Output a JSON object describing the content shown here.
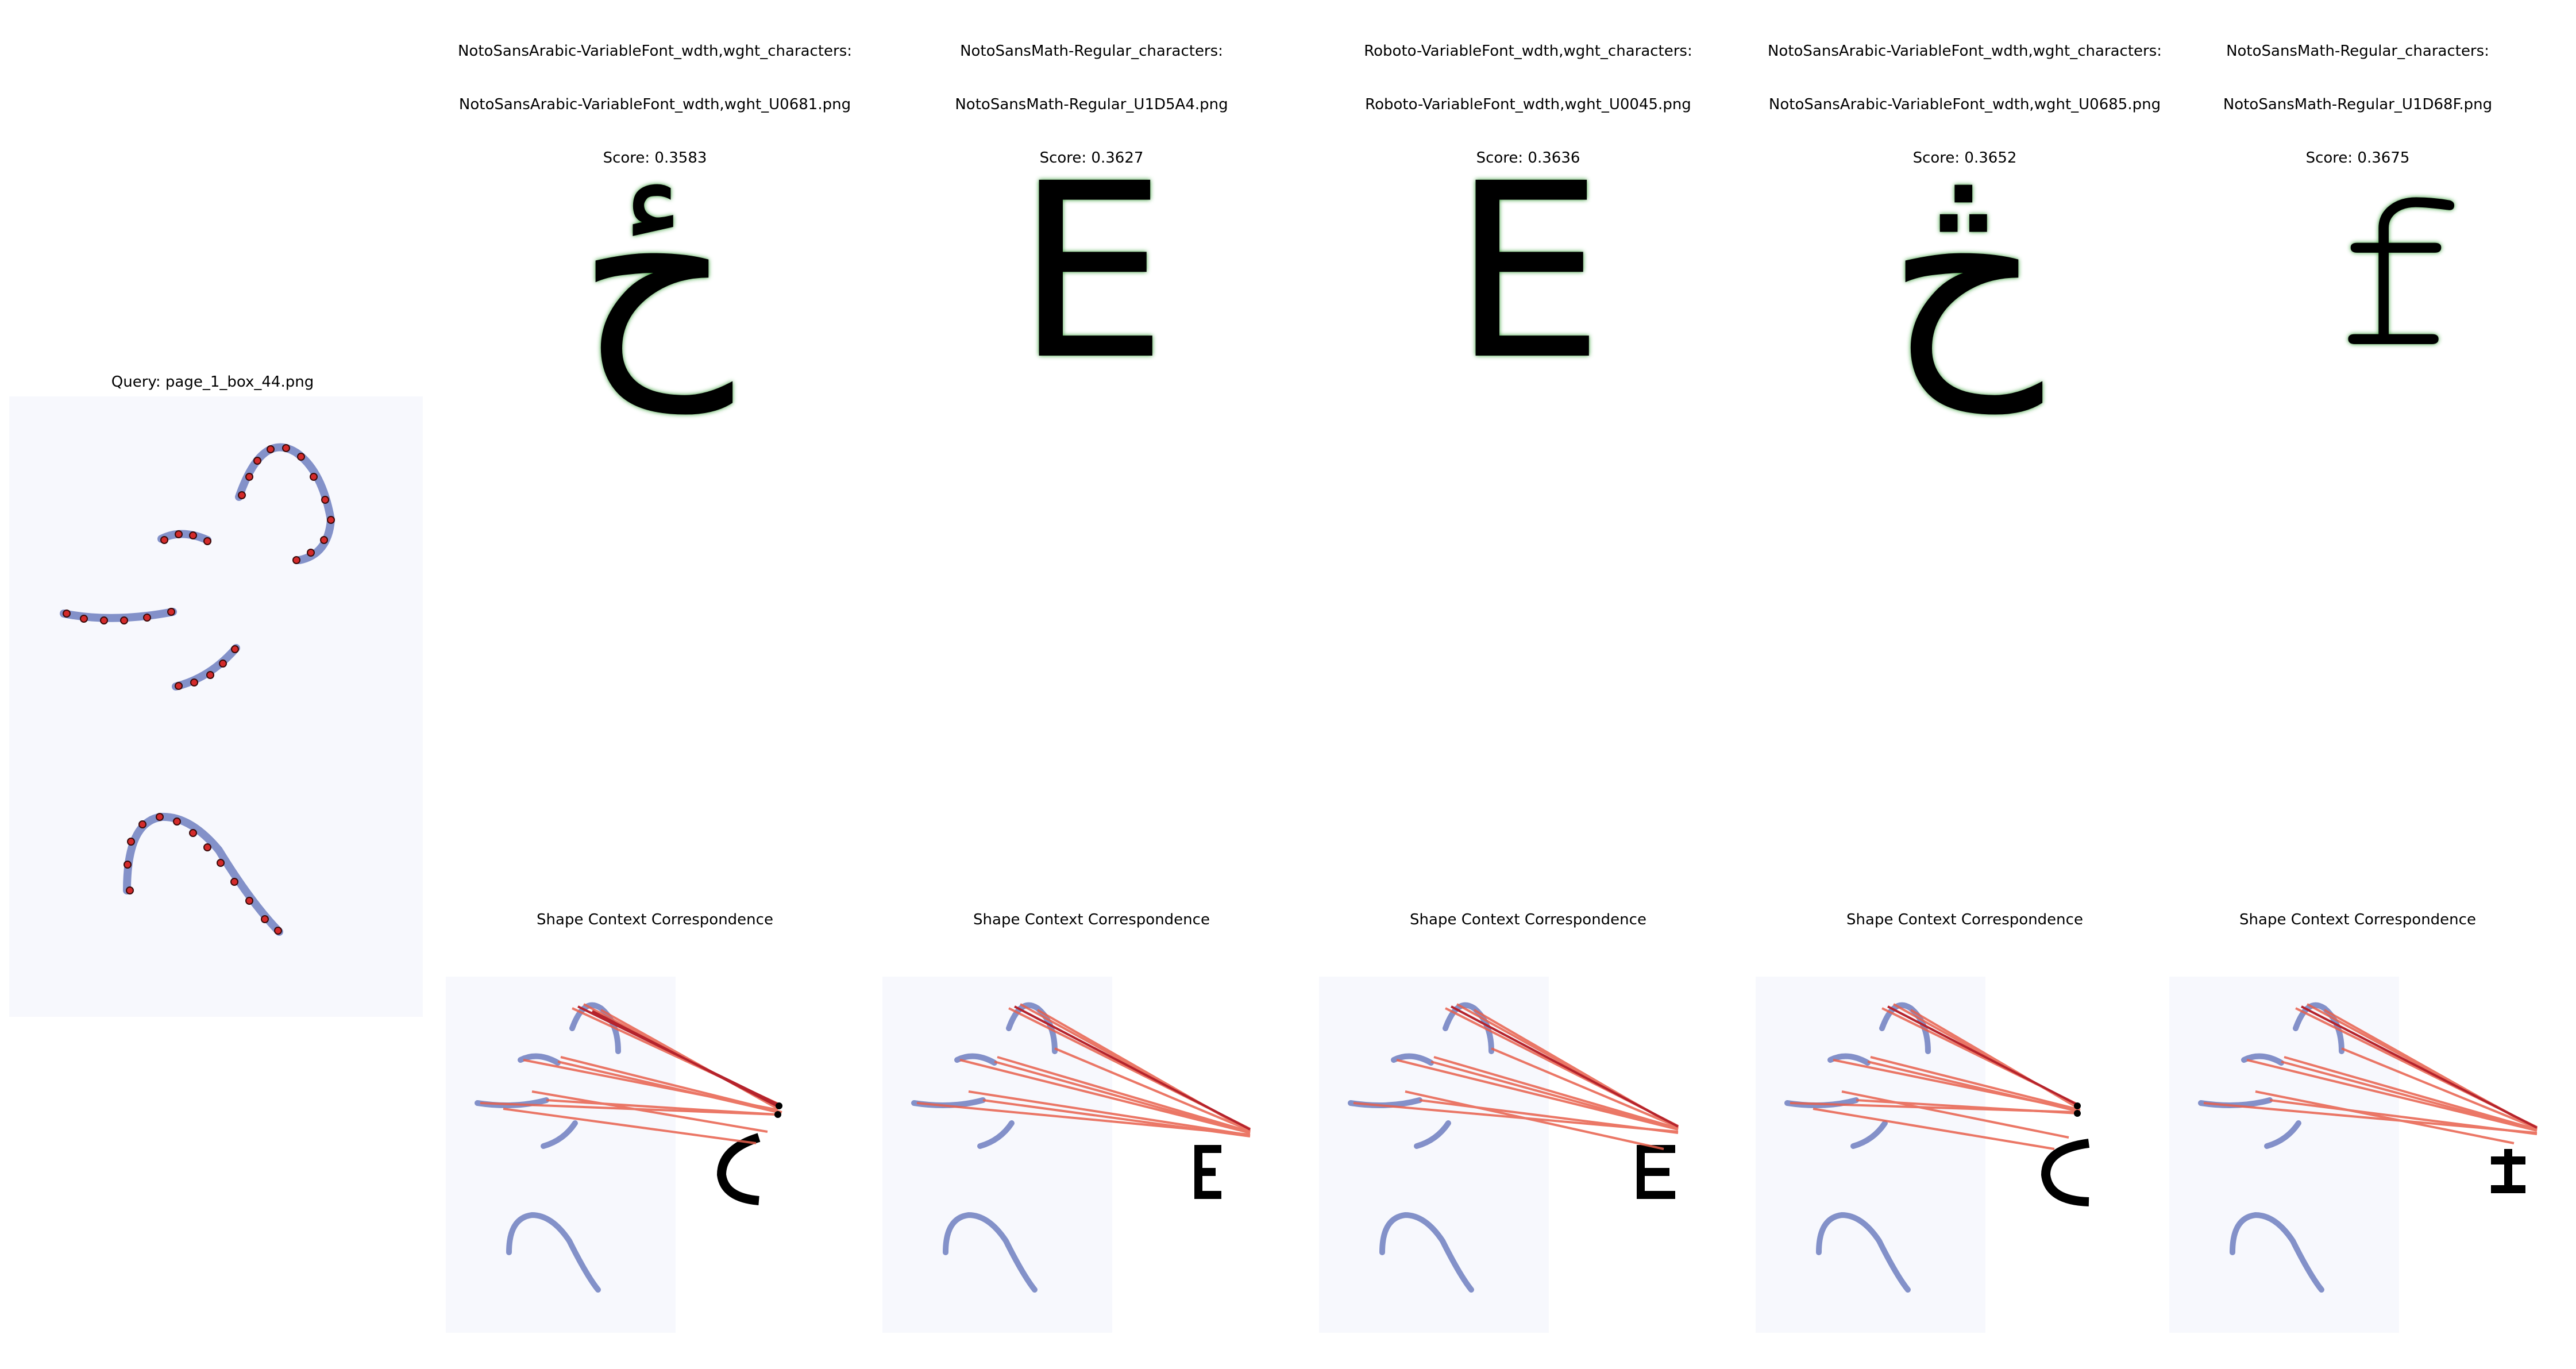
{
  "query": {
    "title": "Query: page_1_box_44.png"
  },
  "matches": [
    {
      "line1": "NotoSansArabic-VariableFont_wdth,wght_characters:",
      "line2": "NotoSansArabic-VariableFont_wdth,wght_U0681.png",
      "score": "Score: 0.3583",
      "glyph": "ځ",
      "correspondence_title": "Shape Context Correspondence"
    },
    {
      "line1": "NotoSansMath-Regular_characters:",
      "line2": "NotoSansMath-Regular_U1D5A4.png",
      "score": "Score: 0.3627",
      "glyph": "E",
      "correspondence_title": "Shape Context Correspondence"
    },
    {
      "line1": "Roboto-VariableFont_wdth,wght_characters:",
      "line2": "Roboto-VariableFont_wdth,wght_U0045.png",
      "score": "Score: 0.3636",
      "glyph": "E",
      "correspondence_title": "Shape Context Correspondence"
    },
    {
      "line1": "NotoSansArabic-VariableFont_wdth,wght_characters:",
      "line2": "NotoSansArabic-VariableFont_wdth,wght_U0685.png",
      "score": "Score: 0.3652",
      "glyph": "څ",
      "correspondence_title": "Shape Context Correspondence"
    },
    {
      "line1": "NotoSansMath-Regular_characters:",
      "line2": "NotoSansMath-Regular_U1D68F.png",
      "score": "Score: 0.3675",
      "glyph": "𝚏",
      "correspondence_title": "Shape Context Correspondence"
    }
  ],
  "colors": {
    "ink": "#6f7fc0",
    "point_red": "#d42a2a",
    "point_green": "#2f9a2f",
    "line_red": "#e8604c",
    "line_dark": "#b5232c"
  }
}
